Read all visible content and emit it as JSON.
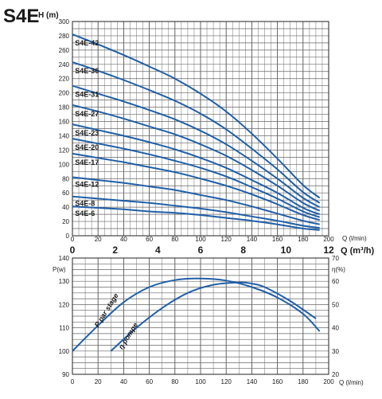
{
  "model": "S4E",
  "chart_data": [
    {
      "type": "line",
      "ylabel": "H (m)",
      "xlabel": "Q (l/min)",
      "xlabel2": "Q (m³/h)",
      "xlim": [
        0,
        200
      ],
      "ylim": [
        0,
        300
      ],
      "x_ticks": [
        0,
        20,
        40,
        60,
        80,
        100,
        120,
        140,
        160,
        180,
        200
      ],
      "x2_ticks": [
        0,
        2,
        4,
        6,
        8,
        10,
        12
      ],
      "y_ticks": [
        0,
        10,
        20,
        30,
        40,
        50,
        60,
        70,
        80,
        90,
        100,
        110,
        120,
        130,
        140,
        150,
        160,
        170,
        180,
        190,
        200,
        210,
        220,
        230,
        240,
        250,
        260,
        270,
        280,
        290,
        300
      ],
      "x_tick_labels": [
        0,
        20,
        40,
        60,
        80,
        100,
        120,
        140,
        160,
        180,
        200
      ],
      "y_tick_labels": [
        0,
        20,
        40,
        60,
        80,
        100,
        120,
        140,
        160,
        180,
        200,
        220,
        240,
        260,
        280,
        300
      ],
      "grid": true,
      "curve_color": "#1f5fa8",
      "x": [
        0,
        20,
        40,
        60,
        80,
        100,
        120,
        140,
        160,
        180,
        193
      ],
      "series": [
        {
          "name": "S4E-42",
          "values": [
            282,
            268,
            253,
            237,
            220,
            199,
            174,
            143,
            108,
            71,
            53
          ]
        },
        {
          "name": "S4E-36",
          "values": [
            243,
            231,
            218,
            204,
            189,
            171,
            149,
            122,
            93,
            61,
            46
          ]
        },
        {
          "name": "S4E-31",
          "values": [
            210,
            199,
            188,
            176,
            163,
            147,
            128,
            105,
            80,
            53,
            40
          ]
        },
        {
          "name": "S4E-27",
          "values": [
            183,
            174,
            164,
            153,
            142,
            128,
            112,
            92,
            70,
            46,
            35
          ]
        },
        {
          "name": "S4E-23",
          "values": [
            156,
            148,
            140,
            131,
            121,
            109,
            95,
            78,
            60,
            39,
            30
          ]
        },
        {
          "name": "S4E-20",
          "values": [
            136,
            129,
            122,
            114,
            105,
            95,
            83,
            68,
            52,
            34,
            26
          ]
        },
        {
          "name": "S4E-17",
          "values": [
            115,
            109,
            103,
            96,
            89,
            80,
            70,
            58,
            44,
            29,
            22
          ]
        },
        {
          "name": "S4E-12",
          "values": [
            82,
            78,
            74,
            69,
            64,
            57,
            50,
            41,
            31,
            21,
            16
          ]
        },
        {
          "name": "S4E-8",
          "values": [
            55,
            52,
            49,
            46,
            42,
            38,
            33,
            27,
            21,
            14,
            11
          ]
        },
        {
          "name": "S4E-6",
          "values": [
            41,
            39,
            37,
            34,
            32,
            29,
            25,
            21,
            16,
            10,
            8
          ]
        }
      ]
    },
    {
      "type": "line",
      "xlabel": "Q (l/min)",
      "ylabel_left": "P(w)",
      "ylabel_right": "η(%)",
      "xlim": [
        0,
        200
      ],
      "ylim_left": [
        90,
        140
      ],
      "ylim_right": [
        20,
        70
      ],
      "x_ticks": [
        0,
        10,
        20,
        30,
        40,
        50,
        60,
        70,
        80,
        90,
        100,
        110,
        120,
        130,
        140,
        150,
        160,
        170,
        180,
        190,
        200
      ],
      "x_tick_labels": [
        0,
        20,
        40,
        60,
        80,
        100,
        120,
        140,
        160,
        180,
        200
      ],
      "y_left_tick_labels": [
        90,
        100,
        110,
        120,
        130,
        140
      ],
      "y_right_tick_labels": [
        20,
        30,
        40,
        50,
        60,
        70
      ],
      "grid": true,
      "series": [
        {
          "name": "P par stage",
          "axis": "left",
          "x": [
            0,
            20,
            40,
            60,
            80,
            100,
            120,
            140,
            160,
            180,
            193
          ],
          "values": [
            100,
            111,
            121,
            127.5,
            130.5,
            131.2,
            130.3,
            127.5,
            123,
            116,
            108.5
          ]
        },
        {
          "name": "η pompe",
          "axis": "right",
          "x": [
            30,
            50,
            70,
            90,
            110,
            130,
            140,
            150,
            170,
            190
          ],
          "values": [
            30,
            40,
            48.5,
            55,
            58.5,
            59.5,
            59,
            57.5,
            51.5,
            44
          ]
        }
      ]
    }
  ]
}
